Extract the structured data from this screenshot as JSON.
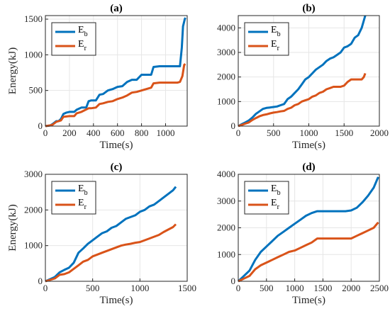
{
  "colors": {
    "Eb": "#0072BD",
    "Er": "#D95319",
    "axis": "#262626",
    "grid": "#e6e6e6"
  },
  "chart_data": [
    {
      "type": "line",
      "title": "(a)",
      "xlabel": "Time(s)",
      "ylabel": "Energy(kJ)",
      "xlim": [
        0,
        1180
      ],
      "ylim": [
        0,
        1550
      ],
      "xticks": [
        0,
        200,
        400,
        600,
        800,
        1000
      ],
      "yticks": [
        0,
        500,
        1000,
        1500
      ],
      "grid": true,
      "legend_position": "top-left",
      "series": [
        {
          "name": "E",
          "sub": "b",
          "key": "Eb",
          "x": [
            0,
            40,
            60,
            90,
            110,
            130,
            150,
            175,
            200,
            240,
            260,
            300,
            340,
            360,
            380,
            420,
            450,
            480,
            520,
            560,
            600,
            640,
            680,
            720,
            760,
            800,
            880,
            900,
            950,
            1000,
            1050,
            1100,
            1120,
            1135,
            1145,
            1160,
            1165
          ],
          "y": [
            0,
            10,
            30,
            70,
            70,
            100,
            170,
            190,
            200,
            200,
            230,
            260,
            260,
            350,
            360,
            360,
            440,
            450,
            500,
            520,
            550,
            560,
            620,
            650,
            650,
            720,
            720,
            830,
            840,
            840,
            840,
            840,
            840,
            1100,
            1400,
            1500,
            1520
          ]
        },
        {
          "name": "E",
          "sub": "r",
          "key": "Er",
          "x": [
            0,
            40,
            60,
            90,
            130,
            150,
            200,
            240,
            260,
            300,
            360,
            380,
            420,
            450,
            480,
            520,
            560,
            600,
            640,
            680,
            720,
            760,
            800,
            880,
            900,
            950,
            1000,
            1050,
            1100,
            1120,
            1140,
            1155,
            1165
          ],
          "y": [
            0,
            10,
            20,
            60,
            80,
            130,
            140,
            140,
            180,
            200,
            250,
            250,
            260,
            310,
            320,
            340,
            350,
            380,
            400,
            430,
            470,
            480,
            500,
            540,
            600,
            610,
            610,
            610,
            610,
            620,
            700,
            860,
            870
          ]
        }
      ]
    },
    {
      "type": "line",
      "title": "(b)",
      "xlabel": "Time(s)",
      "ylabel": "",
      "xlim": [
        0,
        2000
      ],
      "ylim": [
        0,
        4500
      ],
      "xticks": [
        0,
        500,
        1000,
        1500,
        2000
      ],
      "yticks": [
        0,
        1000,
        2000,
        3000,
        4000
      ],
      "grid": true,
      "legend_position": "top-left",
      "series": [
        {
          "name": "E",
          "sub": "b",
          "key": "Eb",
          "x": [
            0,
            50,
            100,
            150,
            200,
            250,
            300,
            350,
            400,
            450,
            500,
            550,
            600,
            650,
            700,
            750,
            800,
            850,
            900,
            950,
            1000,
            1050,
            1100,
            1150,
            1200,
            1250,
            1300,
            1350,
            1400,
            1450,
            1500,
            1550,
            1600,
            1650,
            1700,
            1750,
            1800
          ],
          "y": [
            0,
            80,
            150,
            230,
            350,
            500,
            600,
            700,
            740,
            760,
            780,
            800,
            850,
            900,
            1100,
            1200,
            1350,
            1500,
            1700,
            1900,
            2000,
            2150,
            2300,
            2400,
            2500,
            2650,
            2750,
            2800,
            2900,
            3000,
            3200,
            3250,
            3350,
            3600,
            3700,
            4000,
            4500
          ]
        },
        {
          "name": "E",
          "sub": "r",
          "key": "Er",
          "x": [
            0,
            50,
            100,
            150,
            200,
            250,
            300,
            350,
            400,
            450,
            500,
            550,
            600,
            650,
            700,
            750,
            800,
            850,
            900,
            950,
            1000,
            1050,
            1100,
            1150,
            1200,
            1250,
            1300,
            1350,
            1400,
            1450,
            1500,
            1550,
            1600,
            1650,
            1700,
            1750,
            1780,
            1800
          ],
          "y": [
            0,
            50,
            100,
            150,
            250,
            330,
            400,
            450,
            480,
            520,
            550,
            570,
            600,
            620,
            700,
            750,
            850,
            900,
            1000,
            1050,
            1100,
            1200,
            1250,
            1350,
            1400,
            1500,
            1550,
            1600,
            1600,
            1600,
            1650,
            1800,
            1900,
            1900,
            1900,
            1900,
            2000,
            2150
          ]
        }
      ]
    },
    {
      "type": "line",
      "title": "(c)",
      "xlabel": "Time(s)",
      "ylabel": "Energy(kJ)",
      "xlim": [
        0,
        1500
      ],
      "ylim": [
        0,
        3000
      ],
      "xticks": [
        0,
        500,
        1000,
        1500
      ],
      "yticks": [
        0,
        1000,
        2000,
        3000
      ],
      "grid": true,
      "legend_position": "top-left",
      "series": [
        {
          "name": "E",
          "sub": "b",
          "key": "Eb",
          "x": [
            0,
            50,
            100,
            150,
            200,
            250,
            300,
            350,
            400,
            450,
            500,
            550,
            600,
            650,
            700,
            750,
            800,
            850,
            900,
            950,
            1000,
            1050,
            1100,
            1150,
            1200,
            1250,
            1300,
            1350,
            1380
          ],
          "y": [
            0,
            60,
            120,
            250,
            320,
            380,
            520,
            800,
            920,
            1050,
            1150,
            1250,
            1350,
            1400,
            1500,
            1550,
            1650,
            1750,
            1800,
            1850,
            1950,
            2000,
            2100,
            2150,
            2250,
            2350,
            2450,
            2550,
            2650
          ]
        },
        {
          "name": "E",
          "sub": "r",
          "key": "Er",
          "x": [
            0,
            50,
            100,
            150,
            200,
            250,
            300,
            350,
            400,
            450,
            500,
            550,
            600,
            650,
            700,
            750,
            800,
            850,
            900,
            950,
            1000,
            1050,
            1100,
            1150,
            1200,
            1250,
            1300,
            1350,
            1380
          ],
          "y": [
            0,
            40,
            80,
            180,
            200,
            250,
            350,
            450,
            550,
            600,
            700,
            750,
            800,
            850,
            900,
            950,
            1000,
            1030,
            1050,
            1080,
            1100,
            1150,
            1200,
            1250,
            1300,
            1380,
            1450,
            1520,
            1600
          ]
        }
      ]
    },
    {
      "type": "line",
      "title": "(d)",
      "xlabel": "Time(s)",
      "ylabel": "",
      "xlim": [
        0,
        2500
      ],
      "ylim": [
        0,
        4000
      ],
      "xticks": [
        0,
        500,
        1000,
        1500,
        2000,
        2500
      ],
      "yticks": [
        0,
        1000,
        2000,
        3000,
        4000
      ],
      "grid": true,
      "legend_position": "top-left",
      "series": [
        {
          "name": "E",
          "sub": "b",
          "key": "Eb",
          "x": [
            0,
            100,
            200,
            300,
            400,
            500,
            600,
            700,
            800,
            900,
            1000,
            1100,
            1200,
            1300,
            1400,
            1500,
            1600,
            1700,
            1800,
            1900,
            2000,
            2100,
            2200,
            2300,
            2400,
            2480
          ],
          "y": [
            0,
            200,
            400,
            800,
            1100,
            1300,
            1500,
            1700,
            1850,
            2000,
            2150,
            2300,
            2450,
            2550,
            2620,
            2620,
            2620,
            2620,
            2620,
            2620,
            2650,
            2750,
            2950,
            3200,
            3500,
            3900
          ]
        },
        {
          "name": "E",
          "sub": "r",
          "key": "Er",
          "x": [
            0,
            100,
            200,
            300,
            400,
            500,
            600,
            700,
            800,
            900,
            1000,
            1100,
            1200,
            1300,
            1400,
            1500,
            1600,
            1700,
            1800,
            1900,
            2000,
            2100,
            2200,
            2300,
            2400,
            2480
          ],
          "y": [
            0,
            100,
            200,
            450,
            600,
            700,
            800,
            900,
            1000,
            1100,
            1150,
            1250,
            1350,
            1450,
            1600,
            1600,
            1600,
            1600,
            1600,
            1600,
            1600,
            1700,
            1800,
            1900,
            2000,
            2200
          ]
        }
      ]
    }
  ]
}
